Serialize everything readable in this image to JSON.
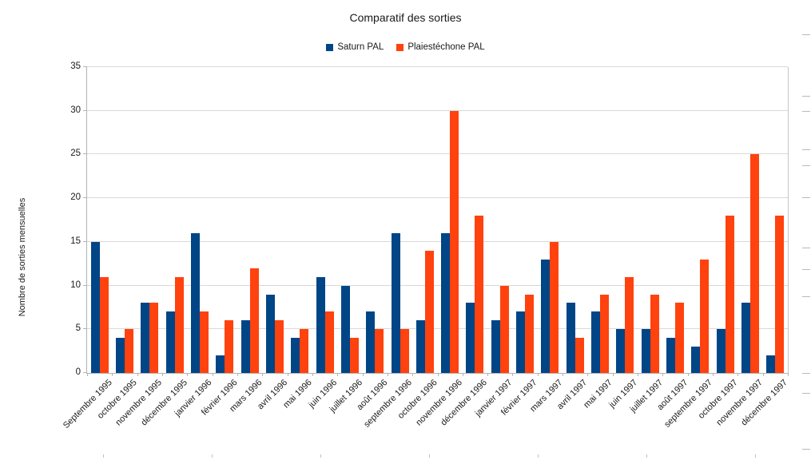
{
  "title": "Comparatif des sorties",
  "ylabel": "Nombre de sorties mensuelles",
  "legend": [
    {
      "label": "Saturn PAL",
      "color": "#004586"
    },
    {
      "label": "Plaiestéchone PAL",
      "color": "#FF420E"
    }
  ],
  "chart_data": {
    "type": "bar",
    "title": "Comparatif des sorties",
    "ylabel": "Nombre de sorties mensuelles",
    "ylim": [
      0,
      35
    ],
    "yticks": [
      0,
      5,
      10,
      15,
      20,
      25,
      30,
      35
    ],
    "grid": true,
    "legend_position": "top",
    "categories": [
      "Septembre 1995",
      "octobre 1995",
      "novembre 1995",
      "décembre 1995",
      "janvier 1996",
      "février 1996",
      "mars 1996",
      "avril 1996",
      "mai 1996",
      "juin 1996",
      "juillet 1996",
      "août 1996",
      "septembre 1996",
      "octobre 1996",
      "novembre 1996",
      "décembre 1996",
      "janvier 1997",
      "février 1997",
      "mars 1997",
      "avril 1997",
      "mai 1997",
      "juin 1997",
      "juillet 1997",
      "août 1997",
      "septembre 1997",
      "octobre 1997",
      "novembre 1997",
      "décembre 1997"
    ],
    "series": [
      {
        "name": "Saturn PAL",
        "color": "#004586",
        "values": [
          15,
          4,
          8,
          7,
          16,
          2,
          6,
          9,
          4,
          11,
          10,
          7,
          16,
          6,
          16,
          8,
          6,
          7,
          13,
          8,
          7,
          5,
          5,
          4,
          3,
          5,
          8,
          2
        ]
      },
      {
        "name": "Plaiestéchone PAL",
        "color": "#FF420E",
        "values": [
          11,
          5,
          8,
          11,
          7,
          6,
          12,
          6,
          5,
          7,
          4,
          5,
          5,
          14,
          30,
          18,
          10,
          9,
          15,
          4,
          9,
          11,
          9,
          8,
          13,
          18,
          25,
          18
        ]
      }
    ]
  },
  "edge_marks": {
    "right_dashes_y": [
      43,
      120,
      139,
      187,
      207,
      247,
      310,
      337,
      371,
      467,
      492,
      562
    ],
    "bottom_ticks_x": [
      129,
      265,
      401,
      537,
      673,
      809,
      945
    ]
  },
  "colors": {
    "series1": "#004586",
    "series2": "#FF420E",
    "gridline": "#d9d9d9",
    "axis": "#b3b3b3"
  }
}
